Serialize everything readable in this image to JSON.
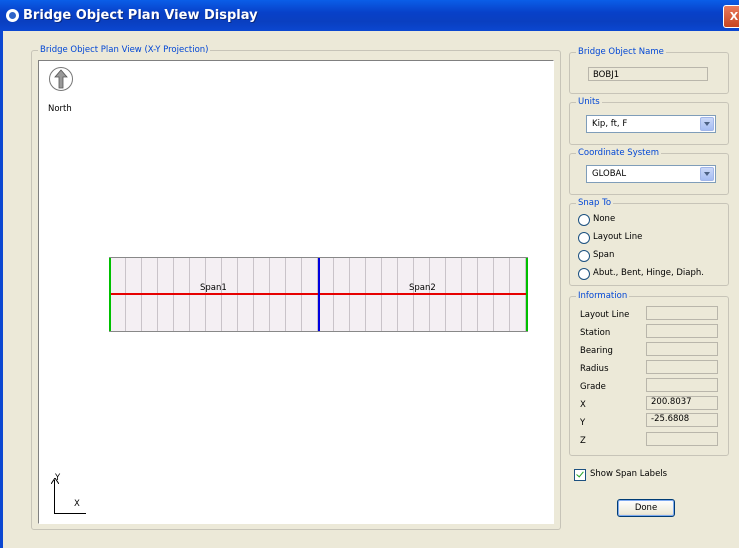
{
  "window": {
    "title": "Bridge Object Plan View Display",
    "close_glyph": "X"
  },
  "plan_view": {
    "legend": "Bridge Object Plan View (X-Y Projection)",
    "north_label": "North",
    "axis_y_label": "Y",
    "axis_x_label": "X",
    "spans": [
      "Span1",
      "Span2"
    ],
    "colors": {
      "centerline": "#e60000",
      "abutment": "#00c000",
      "span_divider": "#0000e0",
      "deck": "#f4eff3"
    }
  },
  "bridge_object_name": {
    "legend": "Bridge Object Name",
    "value": "BOBJ1"
  },
  "units": {
    "legend": "Units",
    "selected": "Kip, ft, F"
  },
  "coordinate_system": {
    "legend": "Coordinate System",
    "selected": "GLOBAL"
  },
  "snap_to": {
    "legend": "Snap To",
    "options": [
      "None",
      "Layout Line",
      "Span",
      "Abut., Bent, Hinge, Diaph."
    ]
  },
  "information": {
    "legend": "Information",
    "rows": [
      {
        "label": "Layout Line",
        "value": ""
      },
      {
        "label": "Station",
        "value": ""
      },
      {
        "label": "Bearing",
        "value": ""
      },
      {
        "label": "Radius",
        "value": ""
      },
      {
        "label": "Grade",
        "value": ""
      },
      {
        "label": "X",
        "value": "200.8037"
      },
      {
        "label": "Y",
        "value": "-25.6808"
      },
      {
        "label": "Z",
        "value": ""
      }
    ]
  },
  "show_span_labels": {
    "label": "Show Span Labels",
    "checked": true
  },
  "done_label": "Done"
}
